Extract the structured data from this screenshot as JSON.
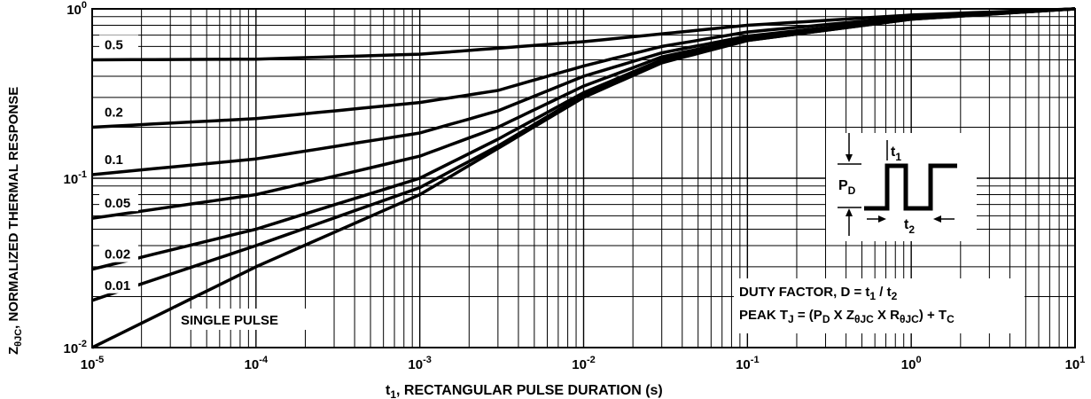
{
  "chart_data": {
    "type": "line",
    "xscale": "log",
    "yscale": "log",
    "xlim": [
      1e-05,
      10
    ],
    "ylim": [
      0.01,
      1
    ],
    "grid": true,
    "xlabel_main": "t",
    "xlabel_sub": "1",
    "xlabel_rest": ",  RECTANGULAR PULSE DURATION (s)",
    "ylabel_main": "Z",
    "ylabel_sub": "θJC",
    "ylabel_rest": ",  NORMALIZED THERMAL RESPONSE",
    "x_ticks": [
      {
        "value": 1e-05,
        "base": "10",
        "exp": "-5"
      },
      {
        "value": 0.0001,
        "base": "10",
        "exp": "-4"
      },
      {
        "value": 0.001,
        "base": "10",
        "exp": "-3"
      },
      {
        "value": 0.01,
        "base": "10",
        "exp": "-2"
      },
      {
        "value": 0.1,
        "base": "10",
        "exp": "-1"
      },
      {
        "value": 1,
        "base": "10",
        "exp": "0"
      },
      {
        "value": 10,
        "base": "10",
        "exp": "1"
      }
    ],
    "y_ticks": [
      {
        "value": 1,
        "base": "10",
        "exp": "0"
      },
      {
        "value": 0.1,
        "base": "10",
        "exp": "-1"
      },
      {
        "value": 0.01,
        "base": "10",
        "exp": "-2"
      }
    ],
    "series": [
      {
        "name": "0.5",
        "x": [
          1e-05,
          0.0001,
          0.001,
          0.01,
          0.1,
          1,
          10
        ],
        "y": [
          0.5,
          0.505,
          0.54,
          0.64,
          0.8,
          0.92,
          1.0
        ]
      },
      {
        "name": "0.2",
        "x": [
          1e-05,
          0.0001,
          0.001,
          0.003,
          0.01,
          0.03,
          0.1,
          1,
          10
        ],
        "y": [
          0.2,
          0.225,
          0.28,
          0.33,
          0.46,
          0.6,
          0.73,
          0.9,
          1.0
        ]
      },
      {
        "name": "0.1",
        "x": [
          1e-05,
          0.0001,
          0.001,
          0.003,
          0.01,
          0.03,
          0.1,
          1,
          10
        ],
        "y": [
          0.105,
          0.13,
          0.185,
          0.25,
          0.4,
          0.55,
          0.69,
          0.88,
          1.0
        ]
      },
      {
        "name": "0.05",
        "x": [
          1e-05,
          0.0001,
          0.001,
          0.003,
          0.01,
          0.03,
          0.1,
          1,
          10
        ],
        "y": [
          0.058,
          0.08,
          0.135,
          0.2,
          0.35,
          0.52,
          0.67,
          0.88,
          1.0
        ]
      },
      {
        "name": "0.02",
        "x": [
          1e-05,
          0.0001,
          0.001,
          0.003,
          0.01,
          0.03,
          0.1,
          1,
          10
        ],
        "y": [
          0.029,
          0.05,
          0.1,
          0.17,
          0.32,
          0.5,
          0.66,
          0.88,
          1.0
        ]
      },
      {
        "name": "0.01",
        "x": [
          1e-05,
          0.0001,
          0.001,
          0.003,
          0.01,
          0.03,
          0.1,
          1,
          10
        ],
        "y": [
          0.019,
          0.04,
          0.088,
          0.155,
          0.31,
          0.49,
          0.65,
          0.87,
          1.0
        ]
      },
      {
        "name": "SINGLE PULSE",
        "x": [
          1e-05,
          0.0001,
          0.001,
          0.003,
          0.01,
          0.03,
          0.1,
          1,
          10
        ],
        "y": [
          0.01,
          0.03,
          0.08,
          0.15,
          0.3,
          0.48,
          0.65,
          0.87,
          1.0
        ]
      }
    ],
    "curve_labels": [
      {
        "text": "0.5",
        "series": 0
      },
      {
        "text": "0.2",
        "series": 1
      },
      {
        "text": "0.1",
        "series": 2
      },
      {
        "text": "0.05",
        "series": 3
      },
      {
        "text": "0.02",
        "series": 4
      },
      {
        "text": "0.01",
        "series": 5
      }
    ],
    "single_pulse_label": "SINGLE PULSE",
    "inset": {
      "pd_main": "P",
      "pd_sub": "D",
      "t1_main": "t",
      "t1_sub": "1",
      "t2_main": "t",
      "t2_sub": "2"
    },
    "formula": {
      "line1": [
        "DUTY FACTOR, D = t",
        "1",
        " / t",
        "2"
      ],
      "line2": [
        "PEAK T",
        "J",
        " = (P",
        "D",
        " X Z",
        "θJC",
        " X R",
        "θJC",
        ") + T",
        "C"
      ]
    }
  }
}
